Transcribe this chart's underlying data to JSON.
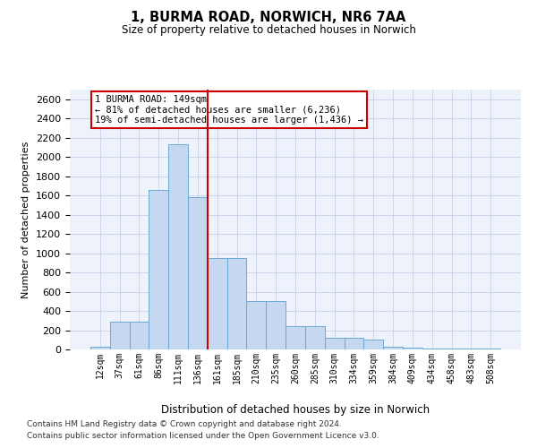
{
  "title": "1, BURMA ROAD, NORWICH, NR6 7AA",
  "subtitle": "Size of property relative to detached houses in Norwich",
  "xlabel": "Distribution of detached houses by size in Norwich",
  "ylabel": "Number of detached properties",
  "categories": [
    "12sqm",
    "37sqm",
    "61sqm",
    "86sqm",
    "111sqm",
    "136sqm",
    "161sqm",
    "185sqm",
    "210sqm",
    "235sqm",
    "260sqm",
    "285sqm",
    "310sqm",
    "334sqm",
    "359sqm",
    "384sqm",
    "409sqm",
    "434sqm",
    "458sqm",
    "483sqm",
    "508sqm"
  ],
  "values": [
    30,
    290,
    290,
    1660,
    2130,
    1580,
    950,
    950,
    500,
    500,
    245,
    245,
    120,
    120,
    100,
    30,
    20,
    10,
    5,
    5,
    5
  ],
  "bar_color": "#c5d8f0",
  "bar_edge_color": "#6aaad4",
  "vline_color": "#cc0000",
  "annotation_text": "1 BURMA ROAD: 149sqm\n← 81% of detached houses are smaller (6,236)\n19% of semi-detached houses are larger (1,436) →",
  "annotation_box_color": "white",
  "annotation_box_edge": "#cc0000",
  "ylim": [
    0,
    2700
  ],
  "yticks": [
    0,
    200,
    400,
    600,
    800,
    1000,
    1200,
    1400,
    1600,
    1800,
    2000,
    2200,
    2400,
    2600
  ],
  "bg_color": "#eef2fb",
  "grid_color": "#c8d0e8",
  "footer1": "Contains HM Land Registry data © Crown copyright and database right 2024.",
  "footer2": "Contains public sector information licensed under the Open Government Licence v3.0."
}
